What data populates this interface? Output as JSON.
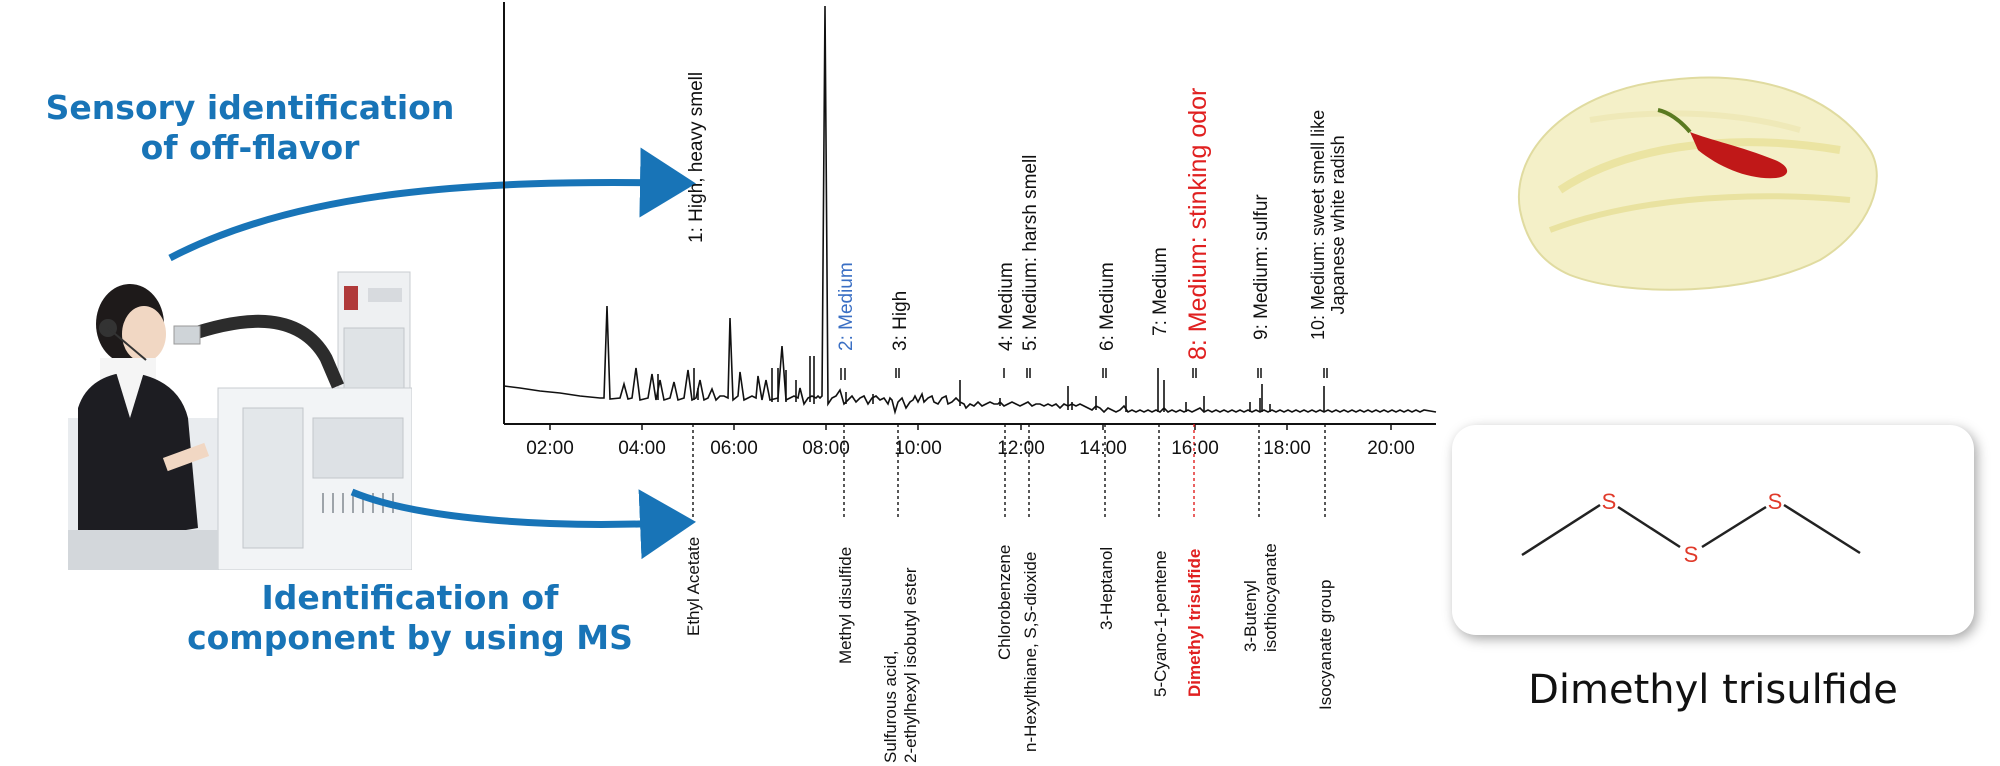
{
  "headings": {
    "sensory": "Sensory identification of off-flavor",
    "ms": "Identification of component by using MS"
  },
  "odor_labels": [
    {
      "lines": [
        "1: High, heavy smell"
      ],
      "color": "#111111",
      "bold": false
    },
    {
      "lines": [
        "2: Medium"
      ],
      "color": "#3a6fc4",
      "bold": false
    },
    {
      "lines": [
        "3: High"
      ],
      "color": "#111111",
      "bold": false
    },
    {
      "lines": [
        "4: Medium"
      ],
      "color": "#111111",
      "bold": false
    },
    {
      "lines": [
        "5: Medium: harsh smell"
      ],
      "color": "#111111",
      "bold": false
    },
    {
      "lines": [
        "6: Medium"
      ],
      "color": "#111111",
      "bold": false
    },
    {
      "lines": [
        "7: Medium"
      ],
      "color": "#111111",
      "bold": false
    },
    {
      "lines": [
        "8: Medium: stinking odor"
      ],
      "color": "#e02020",
      "bold": false
    },
    {
      "lines": [
        "9: Medium: sulfur"
      ],
      "color": "#111111",
      "bold": false
    },
    {
      "lines": [
        "10: Medium: sweet smell like",
        "Japanese white radish"
      ],
      "color": "#111111",
      "bold": false
    }
  ],
  "compound_labels": [
    {
      "lines": [
        "Ethyl Acetate"
      ],
      "color": "#111111",
      "bold": false
    },
    {
      "lines": [
        "Methyl disulfide"
      ],
      "color": "#111111",
      "bold": false
    },
    {
      "lines": [
        "Sulfurous acid,",
        "2-ethylhexyl isobutyl ester"
      ],
      "color": "#111111",
      "bold": false
    },
    {
      "lines": [
        "Chlorobenzene"
      ],
      "color": "#111111",
      "bold": false
    },
    {
      "lines": [
        "n-Hexylthiane, S,S-dioxide"
      ],
      "color": "#111111",
      "bold": false
    },
    {
      "lines": [
        "3-Heptanol"
      ],
      "color": "#111111",
      "bold": false
    },
    {
      "lines": [
        "5-Cyano-1-pentene"
      ],
      "color": "#111111",
      "bold": false
    },
    {
      "lines": [
        "Dimethyl trisulfide"
      ],
      "color": "#e02020",
      "bold": true
    },
    {
      "lines": [
        "3-Butenyl",
        "isothiocyanate"
      ],
      "color": "#111111",
      "bold": false
    },
    {
      "lines": [
        "Isocyanate group"
      ],
      "color": "#111111",
      "bold": false
    }
  ],
  "x_ticks": [
    "02:00",
    "04:00",
    "06:00",
    "08:00",
    "10:00",
    "12:00",
    "14:00",
    "16:00",
    "18:00",
    "20:00"
  ],
  "molecule": {
    "atoms": [
      "S",
      "S",
      "S"
    ],
    "caption": "Dimethyl trisulfide",
    "atom_color": "#e03a2a"
  },
  "colors": {
    "accent_blue": "#1874b7",
    "highlight_red": "#e02020"
  }
}
